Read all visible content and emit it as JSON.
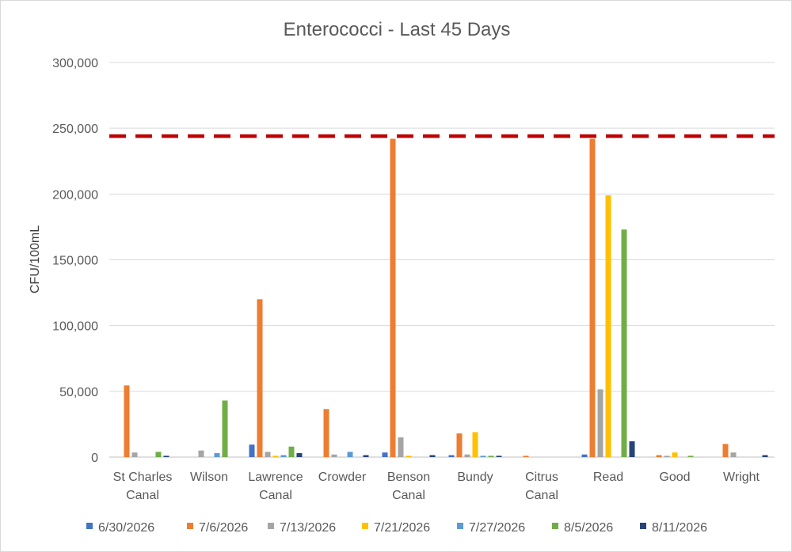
{
  "chart_data": {
    "type": "bar",
    "title": "Enterococci - Last 45 Days",
    "xlabel": "",
    "ylabel": "CFU/100mL",
    "ylim": [
      0,
      300000
    ],
    "ytick_labels": [
      "0",
      "50,000",
      "100,000",
      "150,000",
      "200,000",
      "250,000",
      "300,000"
    ],
    "grid": true,
    "legend_position": "bottom",
    "categories": [
      [
        "St Charles",
        "Canal"
      ],
      [
        "Wilson"
      ],
      [
        "Lawrence",
        "Canal"
      ],
      [
        "Crowder"
      ],
      [
        "Benson",
        "Canal"
      ],
      [
        "Bundy"
      ],
      [
        "Citrus",
        "Canal"
      ],
      [
        "Read"
      ],
      [
        "Good"
      ],
      [
        "Wright"
      ]
    ],
    "series": [
      {
        "name": "6/30/2026",
        "color": "#4472c4",
        "values": [
          0,
          0,
          9500,
          0,
          3500,
          1500,
          0,
          2000,
          0,
          0
        ]
      },
      {
        "name": "7/6/2026",
        "color": "#ed7d31",
        "values": [
          54500,
          0,
          120000,
          36500,
          242000,
          18000,
          1000,
          242000,
          1500,
          10000
        ]
      },
      {
        "name": "7/13/2026",
        "color": "#a5a5a5",
        "values": [
          3500,
          5000,
          4000,
          2000,
          15000,
          2000,
          0,
          51500,
          1000,
          3500
        ]
      },
      {
        "name": "7/21/2026",
        "color": "#ffc000",
        "values": [
          0,
          0,
          1000,
          0,
          1000,
          19000,
          0,
          199000,
          3500,
          0
        ]
      },
      {
        "name": "7/27/2026",
        "color": "#5b9bd5",
        "values": [
          0,
          3000,
          1500,
          4000,
          0,
          1000,
          0,
          0,
          0,
          0
        ]
      },
      {
        "name": "8/5/2026",
        "color": "#70ad47",
        "values": [
          4000,
          43000,
          8000,
          0,
          0,
          1000,
          0,
          173000,
          1000,
          0
        ]
      },
      {
        "name": "8/11/2026",
        "color": "#264478",
        "values": [
          1000,
          0,
          3000,
          1500,
          1500,
          1000,
          0,
          12000,
          0,
          1500
        ]
      }
    ],
    "threshold": {
      "value": 244000,
      "color": "#c00000",
      "style": "dashed"
    },
    "colors": {
      "grid": "#d9d9d9",
      "axis": "#bfbfbf",
      "text": "#595959"
    }
  }
}
